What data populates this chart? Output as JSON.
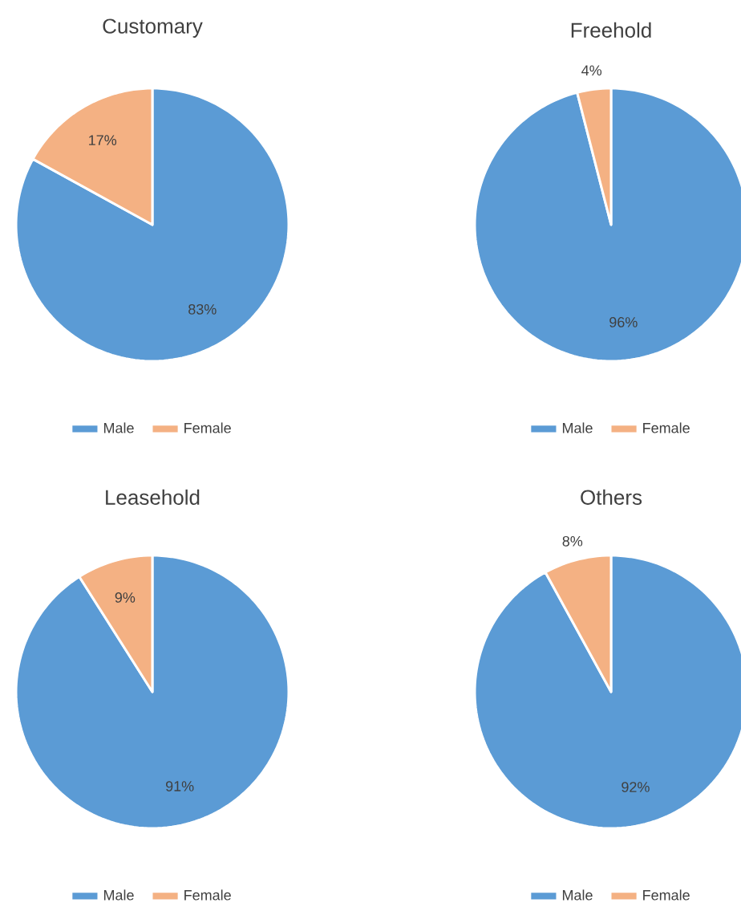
{
  "chart_data": [
    {
      "type": "pie",
      "title": "Customary",
      "categories": [
        "Male",
        "Female"
      ],
      "values": [
        83,
        17
      ],
      "value_labels": [
        "83%",
        "17%"
      ],
      "colors": [
        "#5b9bd5",
        "#f4b183"
      ],
      "legend": "bottom"
    },
    {
      "type": "pie",
      "title": "Freehold",
      "categories": [
        "Male",
        "Female"
      ],
      "values": [
        96,
        4
      ],
      "value_labels": [
        "96%",
        "4%"
      ],
      "colors": [
        "#5b9bd5",
        "#f4b183"
      ],
      "legend": "bottom"
    },
    {
      "type": "pie",
      "title": "Leasehold",
      "categories": [
        "Male",
        "Female"
      ],
      "values": [
        91,
        9
      ],
      "value_labels": [
        "91%",
        "9%"
      ],
      "colors": [
        "#5b9bd5",
        "#f4b183"
      ],
      "legend": "bottom"
    },
    {
      "type": "pie",
      "title": "Others",
      "categories": [
        "Male",
        "Female"
      ],
      "values": [
        92,
        8
      ],
      "value_labels": [
        "92%",
        "8%"
      ],
      "colors": [
        "#5b9bd5",
        "#f4b183"
      ],
      "legend": "bottom"
    }
  ]
}
